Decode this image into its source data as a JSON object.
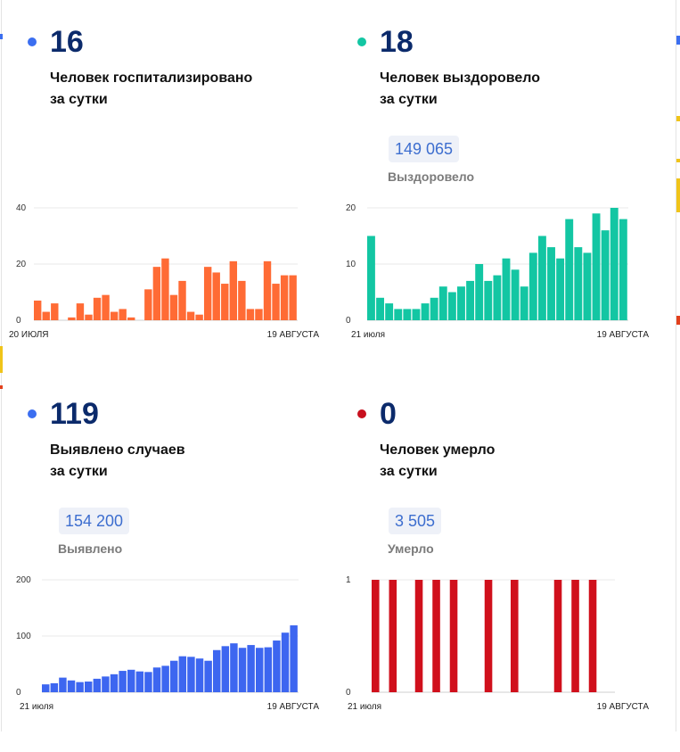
{
  "panels": [
    {
      "id": "hospitalized",
      "value": "16",
      "desc_line1": "Человек госпитализировано",
      "desc_line2": "за сутки",
      "dot_color": "#3b6ef0",
      "bar_color": "#ff6b35",
      "chart_data": {
        "type": "bar",
        "x_start_label": "20 ИЮЛЯ",
        "x_end_label": "19 АВГУСТА",
        "yticks": [
          0,
          20,
          40
        ],
        "ylim": [
          0,
          40
        ],
        "grid": true,
        "values": [
          7,
          3,
          6,
          0,
          1,
          6,
          2,
          8,
          9,
          3,
          4,
          1,
          0,
          11,
          19,
          22,
          9,
          14,
          3,
          2,
          19,
          17,
          13,
          21,
          14,
          4,
          4,
          21,
          13,
          16,
          16
        ]
      }
    },
    {
      "id": "recovered",
      "value": "18",
      "desc_line1": "Человек выздоровело",
      "desc_line2": "за сутки",
      "badge": "149 065",
      "sublabel": "Выздоровело",
      "dot_color": "#13c6a3",
      "bar_color": "#13c6a3",
      "chart_data": {
        "type": "bar",
        "x_start_label": "21 июля",
        "x_end_label": "19 АВГУСТА",
        "yticks": [
          0,
          10,
          20
        ],
        "ylim": [
          0,
          20
        ],
        "grid": true,
        "values": [
          15,
          4,
          3,
          2,
          2,
          2,
          3,
          4,
          6,
          5,
          6,
          7,
          10,
          7,
          8,
          11,
          9,
          6,
          12,
          15,
          13,
          11,
          18,
          13,
          12,
          19,
          16,
          20,
          18
        ]
      }
    },
    {
      "id": "cases",
      "value": "119",
      "desc_line1": "Выявлено случаев",
      "desc_line2": "за сутки",
      "badge": "154 200",
      "sublabel": "Выявлено",
      "dot_color": "#3b6ef0",
      "bar_color": "#3d66f0",
      "chart_data": {
        "type": "bar",
        "x_start_label": "21 июля",
        "x_end_label": "19 АВГУСТА",
        "yticks": [
          0,
          100,
          200
        ],
        "ylim": [
          0,
          200
        ],
        "grid": true,
        "values": [
          14,
          16,
          26,
          21,
          18,
          19,
          24,
          28,
          32,
          38,
          40,
          37,
          36,
          44,
          47,
          56,
          64,
          63,
          60,
          56,
          75,
          82,
          87,
          79,
          84,
          79,
          80,
          92,
          106,
          119
        ]
      }
    },
    {
      "id": "deaths",
      "value": "0",
      "desc_line1": "Человек умерло",
      "desc_line2": "за сутки",
      "badge": "3 505",
      "sublabel": "Умерло",
      "dot_color": "#c8101e",
      "bar_color": "#d0101c",
      "chart_data": {
        "type": "bar",
        "x_start_label": "21 июля",
        "x_end_label": "19 АВГУСТА",
        "yticks": [
          0,
          1
        ],
        "ylim": [
          0,
          1
        ],
        "grid": true,
        "values": [
          1,
          0,
          1,
          0,
          0,
          1,
          0,
          1,
          0,
          1,
          0,
          0,
          0,
          1,
          0,
          0,
          1,
          0,
          0,
          0,
          0,
          1,
          0,
          1,
          0,
          1,
          0,
          0
        ]
      }
    }
  ]
}
